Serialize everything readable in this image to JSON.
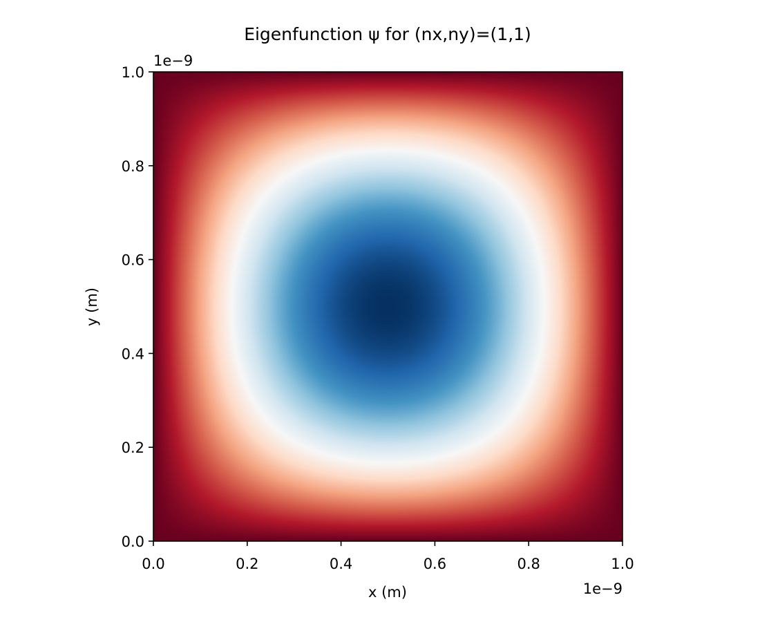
{
  "chart_data": {
    "type": "heatmap",
    "title": "Eigenfunction ψ for (nx,ny)=(1,1)",
    "xlabel": "x (m)",
    "ylabel": "y (m)",
    "xlim": [
      0.0,
      1.0
    ],
    "ylim": [
      0.0,
      1.0
    ],
    "x_offset_text": "1e−9",
    "y_offset_text": "1e−9",
    "x_ticks": [
      {
        "value": 0.0,
        "label": "0.0"
      },
      {
        "value": 0.2,
        "label": "0.2"
      },
      {
        "value": 0.4,
        "label": "0.4"
      },
      {
        "value": 0.6,
        "label": "0.6"
      },
      {
        "value": 0.8,
        "label": "0.8"
      },
      {
        "value": 1.0,
        "label": "1.0"
      }
    ],
    "y_ticks": [
      {
        "value": 0.0,
        "label": "0.0"
      },
      {
        "value": 0.2,
        "label": "0.2"
      },
      {
        "value": 0.4,
        "label": "0.4"
      },
      {
        "value": 0.6,
        "label": "0.6"
      },
      {
        "value": 0.8,
        "label": "0.8"
      },
      {
        "value": 1.0,
        "label": "1.0"
      }
    ],
    "function": "sin(pi*x/L)*sin(pi*y/L)",
    "nx": 1,
    "ny": 1,
    "colormap": "RdBu",
    "colormap_reversed": true,
    "colormap_stops": [
      "#67001f",
      "#b2182b",
      "#d6604d",
      "#f4a582",
      "#fddbc7",
      "#f7f7f7",
      "#d1e5f0",
      "#92c5de",
      "#4393c3",
      "#2166ac",
      "#053061"
    ],
    "grid": false,
    "colorbar": false
  }
}
